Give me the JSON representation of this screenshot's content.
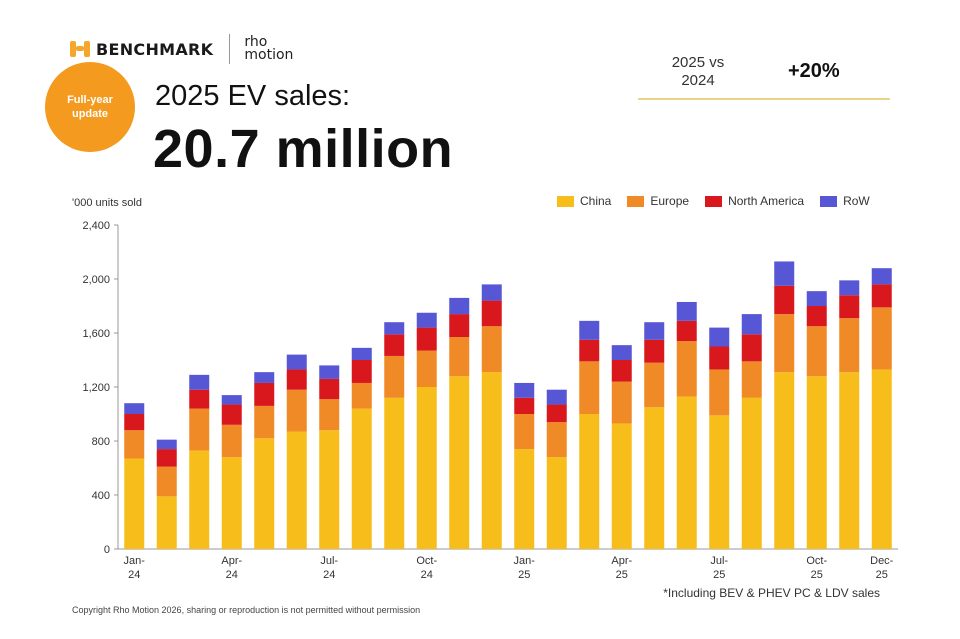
{
  "brand": {
    "name": "BENCHMARK",
    "partner_line1": "rho",
    "partner_line2": "motion"
  },
  "badge": {
    "line1": "Full-year",
    "line2": "update"
  },
  "subtitle": "2025 EV sales:",
  "headline": "20.7 million",
  "comparison": {
    "label_line1": "2025 vs",
    "label_line2": "2024",
    "value": "+20%"
  },
  "units_label": "'000 units sold",
  "footnote": "*Including BEV & PHEV PC & LDV sales",
  "copyright": "Copyright Rho Motion 2026, sharing or reproduction is not permitted without permission",
  "colors": {
    "China": "#f7bd1b",
    "Europe": "#f08a26",
    "North America": "#d9181e",
    "RoW": "#5757d6",
    "brand": "#f4a72a"
  },
  "chart_data": {
    "type": "bar",
    "stacked": true,
    "ylim": [
      0,
      2400
    ],
    "yticks": [
      0,
      400,
      800,
      1200,
      1600,
      2000,
      2400
    ],
    "ytick_labels": [
      "0",
      "400",
      "800",
      "1,200",
      "1,600",
      "2,000",
      "2,400"
    ],
    "categories": [
      "Jan-24",
      "Feb-24",
      "Mar-24",
      "Apr-24",
      "May-24",
      "Jun-24",
      "Jul-24",
      "Aug-24",
      "Sep-24",
      "Oct-24",
      "Nov-24",
      "Dec-24",
      "Jan-25",
      "Feb-25",
      "Mar-25",
      "Apr-25",
      "May-25",
      "Jun-25",
      "Jul-25",
      "Aug-25",
      "Sep-25",
      "Oct-25",
      "Nov-25",
      "Dec-25"
    ],
    "x_tick_labels": [
      {
        "index": 0,
        "line1": "Jan-",
        "line2": "24"
      },
      {
        "index": 3,
        "line1": "Apr-",
        "line2": "24"
      },
      {
        "index": 6,
        "line1": "Jul-",
        "line2": "24"
      },
      {
        "index": 9,
        "line1": "Oct-",
        "line2": "24"
      },
      {
        "index": 12,
        "line1": "Jan-",
        "line2": "25"
      },
      {
        "index": 15,
        "line1": "Apr-",
        "line2": "25"
      },
      {
        "index": 18,
        "line1": "Jul-",
        "line2": "25"
      },
      {
        "index": 21,
        "line1": "Oct-",
        "line2": "25"
      },
      {
        "index": 23,
        "line1": "Dec-",
        "line2": "25"
      }
    ],
    "series": [
      {
        "name": "China",
        "values": [
          670,
          390,
          730,
          680,
          820,
          870,
          880,
          1040,
          1120,
          1200,
          1280,
          1310,
          740,
          680,
          1000,
          930,
          1050,
          1130,
          990,
          1120,
          1310,
          1280,
          1310,
          1330
        ]
      },
      {
        "name": "Europe",
        "values": [
          210,
          220,
          310,
          240,
          240,
          310,
          230,
          190,
          310,
          270,
          290,
          340,
          260,
          260,
          390,
          310,
          330,
          410,
          340,
          270,
          430,
          370,
          400,
          460
        ]
      },
      {
        "name": "North America",
        "values": [
          120,
          130,
          140,
          150,
          170,
          150,
          150,
          170,
          160,
          170,
          170,
          190,
          120,
          130,
          160,
          160,
          170,
          150,
          170,
          200,
          210,
          150,
          170,
          170
        ]
      },
      {
        "name": "RoW",
        "values": [
          80,
          70,
          110,
          70,
          80,
          110,
          100,
          90,
          90,
          110,
          120,
          120,
          110,
          110,
          140,
          110,
          130,
          140,
          140,
          150,
          180,
          110,
          110,
          120
        ]
      }
    ]
  }
}
